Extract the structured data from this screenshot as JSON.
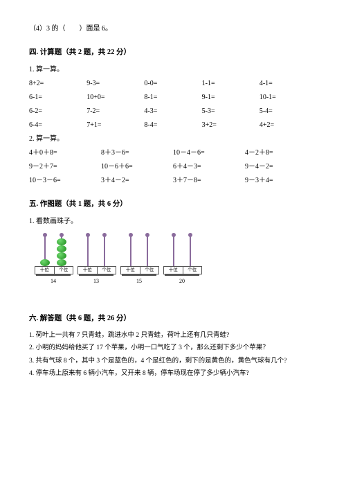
{
  "q4": "（4）3 的（　　）面是 6。",
  "sec4": {
    "title": "四. 计算题（共 2 题，共 22 分）",
    "p1": "1. 算一算。",
    "rows1": [
      [
        "8+2=",
        "9-3=",
        "0-0=",
        "1-1=",
        "4-1="
      ],
      [
        "6-1=",
        "10+0=",
        "8-1=",
        "9-1=",
        "10-1="
      ],
      [
        "6-2=",
        "7-2=",
        "4-3=",
        "5-3=",
        "5-4="
      ],
      [
        "6-4=",
        "7+1=",
        "8-4=",
        "3+2=",
        "4+2="
      ]
    ],
    "p2": "2. 算一算。",
    "rows2": [
      [
        "4＋0＋8=",
        "8＋3－6=",
        "10－4－6=",
        "4－2＋8="
      ],
      [
        "9－2＋7=",
        "10－6＋6=",
        "6＋4－3=",
        "9－4－2="
      ],
      [
        "10－3－6=",
        "3＋4－2=",
        "3＋7－8=",
        "9－3＋4="
      ]
    ]
  },
  "sec5": {
    "title": "五. 作图题（共 1 题，共 6 分）",
    "p1": "1. 看数画珠子。",
    "abacus": [
      {
        "label": "14",
        "tens": 1,
        "ones": 4,
        "box": [
          "十位",
          "个位"
        ]
      },
      {
        "label": "13",
        "tens": 0,
        "ones": 0,
        "box": [
          "十位",
          "个位"
        ]
      },
      {
        "label": "15",
        "tens": 0,
        "ones": 0,
        "box": [
          "十位",
          "个位"
        ]
      },
      {
        "label": "20",
        "tens": 0,
        "ones": 0,
        "box": [
          "十位",
          "个位"
        ]
      }
    ]
  },
  "sec6": {
    "title": "六. 解答题（共 6 题，共 26 分）",
    "lines": [
      "1. 荷叶上一共有 7 只青蛙，跳进水中 2 只青蛙，荷叶上还有几只青蛙?",
      "2. 小明的妈妈给他买了 17 个苹果，小明一口气吃了 3 个，那么还剩下多少个苹果？",
      "3. 共有气球 8 个，其中 3 个是蓝色的，4 个是红色的，剩下的是黄色的，黄色气球有几个?",
      "4. 停车场上原来有 6 辆小汽车，又开来 8 辆，停车场现在停了多少辆小汽车?"
    ]
  }
}
